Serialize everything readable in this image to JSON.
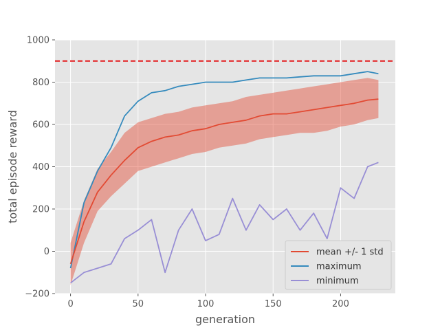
{
  "chart_data": {
    "type": "line",
    "title": "",
    "xlabel": "generation",
    "ylabel": "total episode reward",
    "xlim": [
      -11.5,
      240.5
    ],
    "ylim": [
      -200,
      1000
    ],
    "xticks": [
      0,
      50,
      100,
      150,
      200
    ],
    "yticks": [
      -200,
      0,
      200,
      400,
      600,
      800,
      1000
    ],
    "xtick_labels": [
      "0",
      "50",
      "100",
      "150",
      "200"
    ],
    "ytick_labels": [
      "−200",
      "0",
      "200",
      "400",
      "600",
      "800",
      "1000"
    ],
    "grid": true,
    "legend_position": "lower-right",
    "threshold": {
      "y": 900,
      "color": "#e41a1c",
      "style": "dashed"
    },
    "x": [
      0,
      10,
      20,
      30,
      40,
      50,
      60,
      70,
      80,
      90,
      100,
      110,
      120,
      130,
      140,
      150,
      160,
      170,
      180,
      190,
      200,
      210,
      220,
      228
    ],
    "series": [
      {
        "name": "mean +/- 1 std",
        "color": "#e24a33",
        "values": [
          -60,
          140,
          280,
          360,
          430,
          490,
          520,
          540,
          550,
          570,
          580,
          600,
          610,
          620,
          640,
          650,
          650,
          660,
          670,
          680,
          690,
          700,
          715,
          720
        ],
        "std_band": {
          "upper": [
            40,
            240,
            390,
            470,
            560,
            610,
            630,
            650,
            660,
            680,
            690,
            700,
            710,
            730,
            740,
            750,
            760,
            770,
            780,
            790,
            800,
            810,
            820,
            810
          ],
          "lower": [
            -160,
            40,
            190,
            260,
            320,
            380,
            400,
            420,
            440,
            460,
            470,
            490,
            500,
            510,
            530,
            540,
            550,
            560,
            560,
            570,
            590,
            600,
            620,
            630
          ],
          "color": "#e24a33",
          "opacity": 0.45
        }
      },
      {
        "name": "maximum",
        "color": "#348abd",
        "values": [
          -80,
          230,
          380,
          490,
          640,
          710,
          750,
          760,
          780,
          790,
          800,
          800,
          800,
          810,
          820,
          820,
          820,
          825,
          830,
          830,
          830,
          840,
          850,
          840
        ]
      },
      {
        "name": "minimum",
        "color": "#988ed5",
        "values": [
          -150,
          -100,
          -80,
          -60,
          60,
          100,
          150,
          -100,
          100,
          200,
          50,
          80,
          250,
          100,
          220,
          150,
          200,
          100,
          180,
          60,
          300,
          250,
          400,
          420
        ]
      }
    ]
  }
}
